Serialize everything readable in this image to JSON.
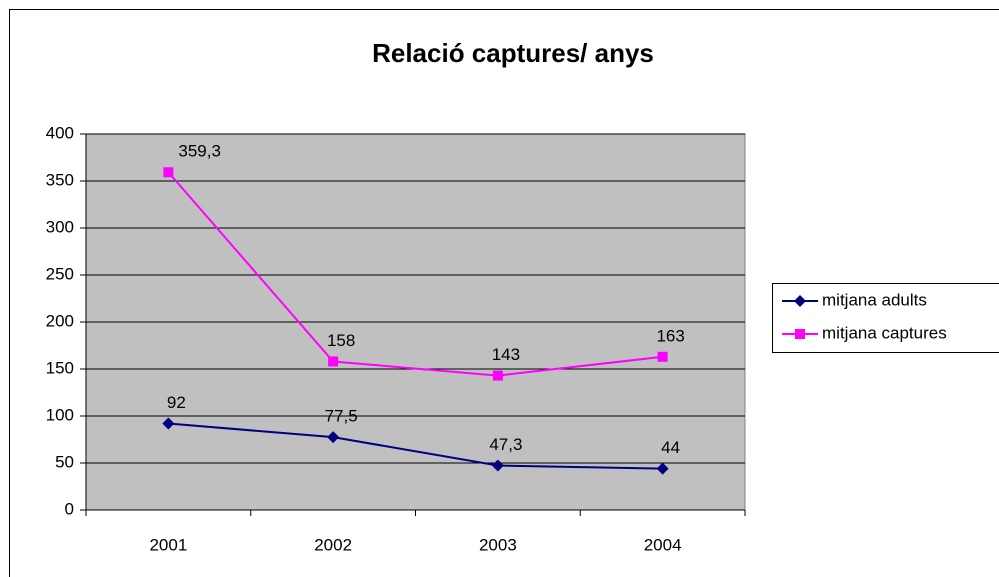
{
  "chart_data": {
    "type": "line",
    "title": "Relació captures/ anys",
    "categories": [
      "2001",
      "2002",
      "2003",
      "2004"
    ],
    "series": [
      {
        "name": "mitjana adults",
        "color": "#000080",
        "marker": "diamond",
        "values": [
          92,
          77.5,
          47.3,
          44
        ],
        "value_labels": [
          "92",
          "77,5",
          "47,3",
          "44"
        ]
      },
      {
        "name": "mitjana captures",
        "color": "#ff00ff",
        "marker": "square",
        "values": [
          359.3,
          158,
          143,
          163
        ],
        "value_labels": [
          "359,3",
          "158",
          "143",
          "163"
        ]
      }
    ],
    "ylim": [
      0,
      400
    ],
    "yticks": [
      0,
      50,
      100,
      150,
      200,
      250,
      300,
      350,
      400
    ],
    "grid": true,
    "legend": "right"
  }
}
